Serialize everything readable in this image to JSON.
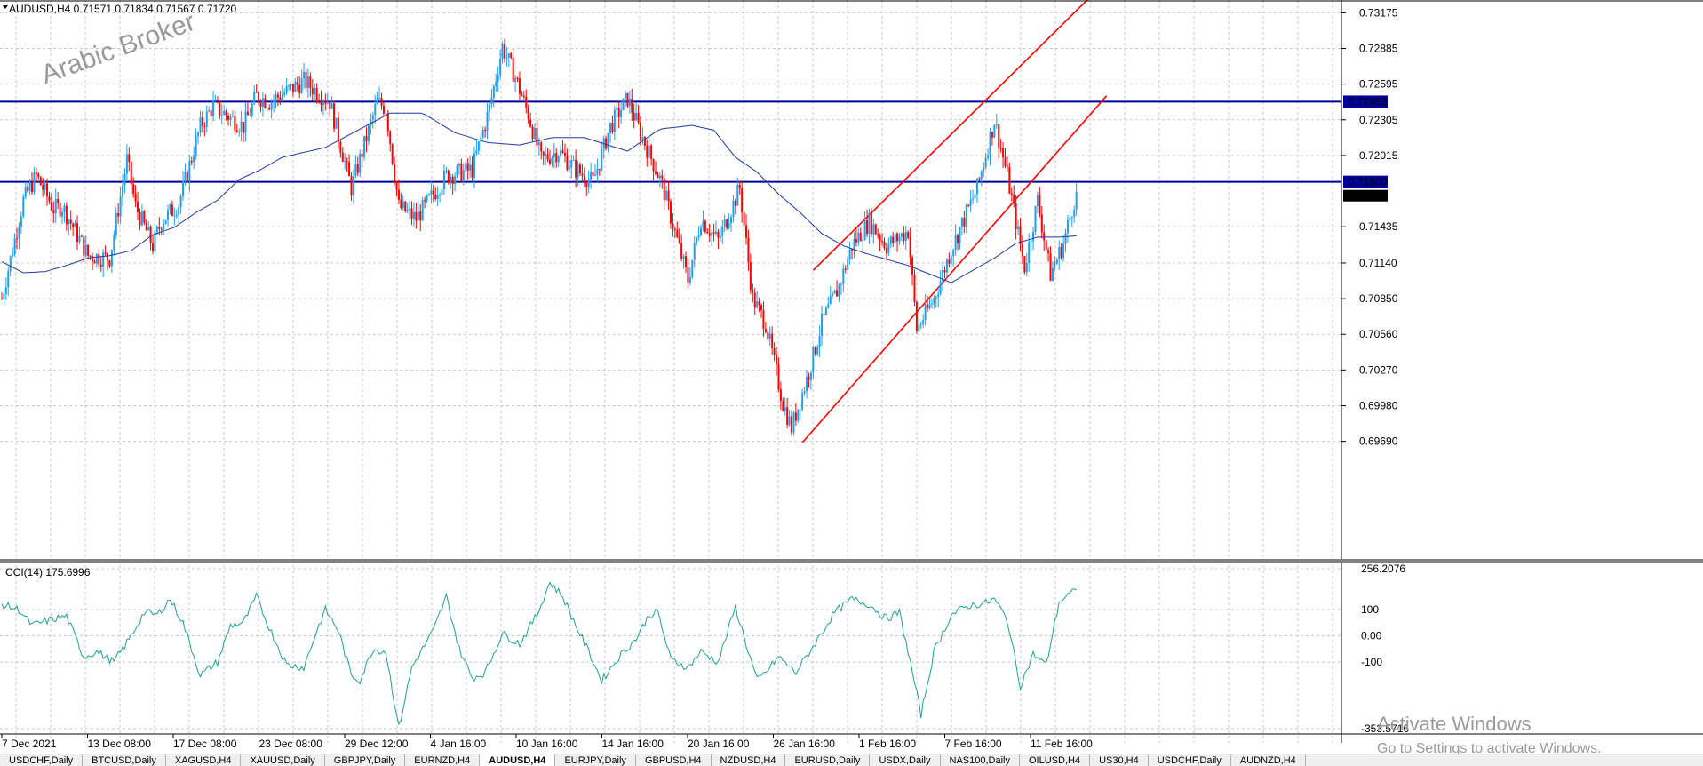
{
  "window": {
    "symbol_header": "AUDUSD,H4  0.71571  0.71834  0.71567  0.71720",
    "watermark": "Arabic Broker",
    "activate_title": "Activate Windows",
    "activate_sub": "Go to Settings to activate Windows."
  },
  "tabs": [
    "USDCHF,Daily",
    "BTCUSD,Daily",
    "XAGUSD,H4",
    "XAUUSD,Daily",
    "GBPJPY,Daily",
    "EURNZD,H4",
    "AUDUSD,H4",
    "EURJPY,Daily",
    "GBPUSD,H4",
    "NZDUSD,H4",
    "EURUSD,Daily",
    "USDX,Daily",
    "NAS100,Daily",
    "OILUSD,H4",
    "US30,H4",
    "USDCHF,Daily",
    "AUDNZD,H4"
  ],
  "active_tab": 6,
  "colors": {
    "bull": "#1e9ff0",
    "bear": "#ff0000",
    "ma": "#1e3a9e",
    "hline": "#00009b",
    "channel": "#ff0000",
    "cci": "#20a090",
    "grid": "#c8c8c8"
  },
  "chart_data": [
    {
      "type": "candlestick",
      "title": "AUDUSD,H4",
      "ohlc_header": [
        "0.71571",
        "0.71834",
        "0.71567",
        "0.71720"
      ],
      "ylim": [
        0.6955,
        0.7325
      ],
      "y_ticks": [
        "0.73175",
        "0.72885",
        "0.72595",
        "0.72305",
        "0.72015",
        "0.71435",
        "0.71140",
        "0.70850",
        "0.70560",
        "0.70270",
        "0.69980",
        "0.69690"
      ],
      "x_labels": [
        "7 Dec 2021",
        "13 Dec 08:00",
        "17 Dec 08:00",
        "23 Dec 08:00",
        "29 Dec 12:00",
        "4 Jan 16:00",
        "10 Jan 16:00",
        "14 Jan 16:00",
        "20 Jan 16:00",
        "26 Jan 16:00",
        "1 Feb 16:00",
        "7 Feb 16:00",
        "11 Feb 16:00"
      ],
      "horizontal_lines": [
        {
          "value": 0.72452,
          "label": "0.72452"
        },
        {
          "value": 0.718,
          "label": "0.71800"
        }
      ],
      "price_tag": {
        "value": 0.7172,
        "label": "0.71720"
      },
      "anchors": [
        [
          0,
          0.7085
        ],
        [
          10,
          0.7165
        ],
        [
          16,
          0.7185
        ],
        [
          24,
          0.7158
        ],
        [
          28,
          0.716
        ],
        [
          40,
          0.712
        ],
        [
          50,
          0.7118
        ],
        [
          58,
          0.7198
        ],
        [
          62,
          0.716
        ],
        [
          70,
          0.7128
        ],
        [
          74,
          0.7148
        ],
        [
          82,
          0.7162
        ],
        [
          92,
          0.7225
        ],
        [
          98,
          0.7242
        ],
        [
          112,
          0.7225
        ],
        [
          118,
          0.725
        ],
        [
          124,
          0.7245
        ],
        [
          140,
          0.7262
        ],
        [
          152,
          0.7245
        ],
        [
          162,
          0.7175
        ],
        [
          174,
          0.7245
        ],
        [
          178,
          0.724
        ],
        [
          184,
          0.716
        ],
        [
          192,
          0.715
        ],
        [
          206,
          0.7185
        ],
        [
          218,
          0.719
        ],
        [
          226,
          0.724
        ],
        [
          232,
          0.729
        ],
        [
          238,
          0.7265
        ],
        [
          244,
          0.7235
        ],
        [
          250,
          0.7198
        ],
        [
          258,
          0.7205
        ],
        [
          266,
          0.719
        ],
        [
          274,
          0.718
        ],
        [
          282,
          0.7225
        ],
        [
          290,
          0.7248
        ],
        [
          296,
          0.722
        ],
        [
          306,
          0.7178
        ],
        [
          318,
          0.71
        ],
        [
          324,
          0.715
        ],
        [
          332,
          0.7132
        ],
        [
          342,
          0.7175
        ],
        [
          348,
          0.7085
        ],
        [
          354,
          0.7065
        ],
        [
          362,
          0.7
        ],
        [
          366,
          0.698
        ],
        [
          374,
          0.7025
        ],
        [
          380,
          0.7065
        ],
        [
          388,
          0.7095
        ],
        [
          394,
          0.7128
        ],
        [
          402,
          0.7148
        ],
        [
          410,
          0.7128
        ],
        [
          420,
          0.714
        ],
        [
          424,
          0.706
        ],
        [
          432,
          0.7085
        ],
        [
          440,
          0.7125
        ],
        [
          452,
          0.7175
        ],
        [
          460,
          0.723
        ],
        [
          466,
          0.7185
        ],
        [
          474,
          0.711
        ],
        [
          480,
          0.7165
        ],
        [
          486,
          0.7105
        ],
        [
          492,
          0.713
        ],
        [
          498,
          0.7172
        ]
      ],
      "ma_points": [
        [
          0,
          0.7115
        ],
        [
          10,
          0.7106
        ],
        [
          20,
          0.7107
        ],
        [
          30,
          0.7112
        ],
        [
          40,
          0.7118
        ],
        [
          50,
          0.712
        ],
        [
          60,
          0.7124
        ],
        [
          70,
          0.7137
        ],
        [
          80,
          0.7143
        ],
        [
          90,
          0.7155
        ],
        [
          100,
          0.7165
        ],
        [
          110,
          0.7182
        ],
        [
          120,
          0.719
        ],
        [
          130,
          0.72
        ],
        [
          150,
          0.7208
        ],
        [
          165,
          0.7222
        ],
        [
          180,
          0.7236
        ],
        [
          195,
          0.7236
        ],
        [
          210,
          0.722
        ],
        [
          225,
          0.7212
        ],
        [
          240,
          0.721
        ],
        [
          255,
          0.7216
        ],
        [
          270,
          0.7216
        ],
        [
          290,
          0.7205
        ],
        [
          305,
          0.7223
        ],
        [
          320,
          0.7226
        ],
        [
          330,
          0.7222
        ],
        [
          340,
          0.72
        ],
        [
          350,
          0.7188
        ],
        [
          360,
          0.717
        ],
        [
          370,
          0.7155
        ],
        [
          380,
          0.7138
        ],
        [
          390,
          0.7128
        ],
        [
          400,
          0.7122
        ],
        [
          410,
          0.7117
        ],
        [
          420,
          0.7112
        ],
        [
          430,
          0.7105
        ],
        [
          440,
          0.7098
        ],
        [
          450,
          0.7108
        ],
        [
          460,
          0.7118
        ],
        [
          470,
          0.713
        ],
        [
          480,
          0.7135
        ],
        [
          490,
          0.7135
        ],
        [
          498,
          0.7136
        ]
      ],
      "channel_lines": [
        {
          "from": [
            371,
            0.6968
          ],
          "to": [
            512,
            0.725
          ]
        },
        {
          "from": [
            376,
            0.7108
          ],
          "to": [
            510,
            0.734
          ]
        }
      ]
    },
    {
      "type": "line",
      "title": "CCI(14) 175.6996",
      "ylim": [
        -353.5716,
        256.2076
      ],
      "y_ticks": [
        "256.2076",
        "100",
        "0.00",
        "-100",
        "-353.5716"
      ],
      "series": [
        {
          "name": "CCI(14)",
          "anchors": [
            [
              0,
              120
            ],
            [
              8,
              100
            ],
            [
              14,
              40
            ],
            [
              22,
              60
            ],
            [
              30,
              75
            ],
            [
              38,
              -80
            ],
            [
              44,
              -60
            ],
            [
              52,
              -100
            ],
            [
              60,
              0
            ],
            [
              66,
              90
            ],
            [
              72,
              80
            ],
            [
              78,
              140
            ],
            [
              84,
              50
            ],
            [
              92,
              -150
            ],
            [
              100,
              -100
            ],
            [
              106,
              40
            ],
            [
              112,
              50
            ],
            [
              118,
              150
            ],
            [
              124,
              30
            ],
            [
              132,
              -110
            ],
            [
              140,
              -120
            ],
            [
              146,
              20
            ],
            [
              150,
              100
            ],
            [
              156,
              20
            ],
            [
              162,
              -150
            ],
            [
              166,
              -170
            ],
            [
              172,
              -50
            ],
            [
              178,
              -60
            ],
            [
              184,
              -350
            ],
            [
              190,
              -120
            ],
            [
              200,
              20
            ],
            [
              206,
              150
            ],
            [
              212,
              -50
            ],
            [
              218,
              -160
            ],
            [
              224,
              -140
            ],
            [
              232,
              10
            ],
            [
              240,
              -30
            ],
            [
              248,
              80
            ],
            [
              254,
              205
            ],
            [
              260,
              150
            ],
            [
              266,
              40
            ],
            [
              272,
              -60
            ],
            [
              278,
              -170
            ],
            [
              286,
              -80
            ],
            [
              294,
              -10
            ],
            [
              300,
              80
            ],
            [
              304,
              90
            ],
            [
              310,
              -90
            ],
            [
              318,
              -120
            ],
            [
              324,
              -60
            ],
            [
              332,
              -100
            ],
            [
              340,
              110
            ],
            [
              346,
              -60
            ],
            [
              350,
              -170
            ],
            [
              354,
              -140
            ],
            [
              360,
              -80
            ],
            [
              368,
              -140
            ],
            [
              376,
              -40
            ],
            [
              386,
              90
            ],
            [
              394,
              140
            ],
            [
              402,
              120
            ],
            [
              410,
              65
            ],
            [
              416,
              90
            ],
            [
              420,
              -60
            ],
            [
              426,
              -300
            ],
            [
              432,
              -60
            ],
            [
              440,
              80
            ],
            [
              448,
              115
            ],
            [
              456,
              125
            ],
            [
              460,
              140
            ],
            [
              466,
              60
            ],
            [
              472,
              -190
            ],
            [
              478,
              -70
            ],
            [
              484,
              -110
            ],
            [
              490,
              130
            ],
            [
              498,
              175
            ]
          ]
        }
      ]
    }
  ]
}
